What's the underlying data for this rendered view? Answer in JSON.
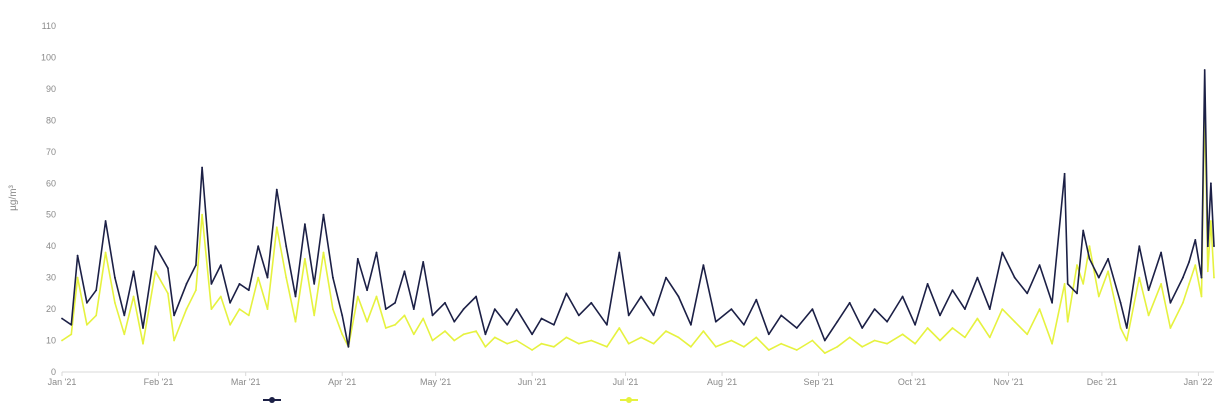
{
  "chart_data": {
    "type": "line",
    "title": "",
    "xlabel": "",
    "ylabel": "µg/m³",
    "ylim": [
      0,
      110
    ],
    "yticks": [
      "0",
      "10",
      "20",
      "30",
      "40",
      "50",
      "60",
      "70",
      "80",
      "90",
      "100",
      "110"
    ],
    "xticks": [
      "Jan '21",
      "Feb '21",
      "Mar '21",
      "Apr '21",
      "May '21",
      "Jun '21",
      "Jul '21",
      "Aug '21",
      "Sep '21",
      "Oct '21",
      "Nov '21",
      "Dec '21",
      "Jan '22"
    ],
    "grid": false,
    "legend_position": "bottom",
    "colors": {
      "pm10": "#1c2046",
      "pm25": "#e6f23f",
      "axis": "#d9d9d9",
      "text": "#8a8a8a"
    },
    "series": [
      {
        "key": "pm10",
        "name": "",
        "points": [
          [
            "2021-01-01",
            17
          ],
          [
            "2021-01-04",
            15
          ],
          [
            "2021-01-06",
            37
          ],
          [
            "2021-01-09",
            22
          ],
          [
            "2021-01-12",
            26
          ],
          [
            "2021-01-15",
            48
          ],
          [
            "2021-01-18",
            30
          ],
          [
            "2021-01-21",
            18
          ],
          [
            "2021-01-24",
            32
          ],
          [
            "2021-01-27",
            14
          ],
          [
            "2021-01-31",
            40
          ],
          [
            "2021-02-04",
            33
          ],
          [
            "2021-02-06",
            18
          ],
          [
            "2021-02-10",
            28
          ],
          [
            "2021-02-13",
            34
          ],
          [
            "2021-02-15",
            65
          ],
          [
            "2021-02-18",
            28
          ],
          [
            "2021-02-21",
            34
          ],
          [
            "2021-02-24",
            22
          ],
          [
            "2021-02-27",
            28
          ],
          [
            "2021-03-02",
            26
          ],
          [
            "2021-03-05",
            40
          ],
          [
            "2021-03-08",
            30
          ],
          [
            "2021-03-11",
            58
          ],
          [
            "2021-03-14",
            40
          ],
          [
            "2021-03-17",
            24
          ],
          [
            "2021-03-20",
            47
          ],
          [
            "2021-03-23",
            28
          ],
          [
            "2021-03-26",
            50
          ],
          [
            "2021-03-29",
            30
          ],
          [
            "2021-04-01",
            18
          ],
          [
            "2021-04-03",
            8
          ],
          [
            "2021-04-06",
            36
          ],
          [
            "2021-04-09",
            26
          ],
          [
            "2021-04-12",
            38
          ],
          [
            "2021-04-15",
            20
          ],
          [
            "2021-04-18",
            22
          ],
          [
            "2021-04-21",
            32
          ],
          [
            "2021-04-24",
            20
          ],
          [
            "2021-04-27",
            35
          ],
          [
            "2021-04-30",
            18
          ],
          [
            "2021-05-04",
            22
          ],
          [
            "2021-05-07",
            16
          ],
          [
            "2021-05-10",
            20
          ],
          [
            "2021-05-14",
            24
          ],
          [
            "2021-05-17",
            12
          ],
          [
            "2021-05-20",
            20
          ],
          [
            "2021-05-24",
            15
          ],
          [
            "2021-05-27",
            20
          ],
          [
            "2021-06-01",
            12
          ],
          [
            "2021-06-04",
            17
          ],
          [
            "2021-06-08",
            15
          ],
          [
            "2021-06-12",
            25
          ],
          [
            "2021-06-16",
            18
          ],
          [
            "2021-06-20",
            22
          ],
          [
            "2021-06-25",
            15
          ],
          [
            "2021-06-29",
            38
          ],
          [
            "2021-07-02",
            18
          ],
          [
            "2021-07-06",
            24
          ],
          [
            "2021-07-10",
            18
          ],
          [
            "2021-07-14",
            30
          ],
          [
            "2021-07-18",
            24
          ],
          [
            "2021-07-22",
            15
          ],
          [
            "2021-07-26",
            34
          ],
          [
            "2021-07-30",
            16
          ],
          [
            "2021-08-04",
            20
          ],
          [
            "2021-08-08",
            15
          ],
          [
            "2021-08-12",
            23
          ],
          [
            "2021-08-16",
            12
          ],
          [
            "2021-08-20",
            18
          ],
          [
            "2021-08-25",
            14
          ],
          [
            "2021-08-30",
            20
          ],
          [
            "2021-09-03",
            10
          ],
          [
            "2021-09-07",
            16
          ],
          [
            "2021-09-11",
            22
          ],
          [
            "2021-09-15",
            14
          ],
          [
            "2021-09-19",
            20
          ],
          [
            "2021-09-23",
            16
          ],
          [
            "2021-09-28",
            24
          ],
          [
            "2021-10-02",
            15
          ],
          [
            "2021-10-06",
            28
          ],
          [
            "2021-10-10",
            18
          ],
          [
            "2021-10-14",
            26
          ],
          [
            "2021-10-18",
            20
          ],
          [
            "2021-10-22",
            30
          ],
          [
            "2021-10-26",
            20
          ],
          [
            "2021-10-30",
            38
          ],
          [
            "2021-11-03",
            30
          ],
          [
            "2021-11-07",
            25
          ],
          [
            "2021-11-11",
            34
          ],
          [
            "2021-11-15",
            22
          ],
          [
            "2021-11-19",
            63
          ],
          [
            "2021-11-20",
            28
          ],
          [
            "2021-11-23",
            25
          ],
          [
            "2021-11-25",
            45
          ],
          [
            "2021-11-27",
            36
          ],
          [
            "2021-11-30",
            30
          ],
          [
            "2021-12-03",
            36
          ],
          [
            "2021-12-07",
            22
          ],
          [
            "2021-12-09",
            14
          ],
          [
            "2021-12-13",
            40
          ],
          [
            "2021-12-16",
            26
          ],
          [
            "2021-12-20",
            38
          ],
          [
            "2021-12-23",
            22
          ],
          [
            "2021-12-27",
            30
          ],
          [
            "2021-12-29",
            35
          ],
          [
            "2021-12-31",
            42
          ],
          [
            "2022-01-02",
            30
          ],
          [
            "2022-01-03",
            96
          ],
          [
            "2022-01-04",
            40
          ],
          [
            "2022-01-05",
            60
          ],
          [
            "2022-01-06",
            40
          ]
        ]
      },
      {
        "key": "pm25",
        "name": "",
        "points": [
          [
            "2021-01-01",
            10
          ],
          [
            "2021-01-04",
            12
          ],
          [
            "2021-01-06",
            30
          ],
          [
            "2021-01-09",
            15
          ],
          [
            "2021-01-12",
            18
          ],
          [
            "2021-01-15",
            38
          ],
          [
            "2021-01-18",
            22
          ],
          [
            "2021-01-21",
            12
          ],
          [
            "2021-01-24",
            24
          ],
          [
            "2021-01-27",
            9
          ],
          [
            "2021-01-31",
            32
          ],
          [
            "2021-02-04",
            25
          ],
          [
            "2021-02-06",
            10
          ],
          [
            "2021-02-10",
            20
          ],
          [
            "2021-02-13",
            26
          ],
          [
            "2021-02-15",
            50
          ],
          [
            "2021-02-18",
            20
          ],
          [
            "2021-02-21",
            24
          ],
          [
            "2021-02-24",
            15
          ],
          [
            "2021-02-27",
            20
          ],
          [
            "2021-03-02",
            18
          ],
          [
            "2021-03-05",
            30
          ],
          [
            "2021-03-08",
            20
          ],
          [
            "2021-03-11",
            46
          ],
          [
            "2021-03-14",
            30
          ],
          [
            "2021-03-17",
            16
          ],
          [
            "2021-03-20",
            36
          ],
          [
            "2021-03-23",
            18
          ],
          [
            "2021-03-26",
            38
          ],
          [
            "2021-03-29",
            20
          ],
          [
            "2021-04-01",
            12
          ],
          [
            "2021-04-03",
            8
          ],
          [
            "2021-04-06",
            24
          ],
          [
            "2021-04-09",
            16
          ],
          [
            "2021-04-12",
            24
          ],
          [
            "2021-04-15",
            14
          ],
          [
            "2021-04-18",
            15
          ],
          [
            "2021-04-21",
            18
          ],
          [
            "2021-04-24",
            12
          ],
          [
            "2021-04-27",
            17
          ],
          [
            "2021-04-30",
            10
          ],
          [
            "2021-05-04",
            13
          ],
          [
            "2021-05-07",
            10
          ],
          [
            "2021-05-10",
            12
          ],
          [
            "2021-05-14",
            13
          ],
          [
            "2021-05-17",
            8
          ],
          [
            "2021-05-20",
            11
          ],
          [
            "2021-05-24",
            9
          ],
          [
            "2021-05-27",
            10
          ],
          [
            "2021-06-01",
            7
          ],
          [
            "2021-06-04",
            9
          ],
          [
            "2021-06-08",
            8
          ],
          [
            "2021-06-12",
            11
          ],
          [
            "2021-06-16",
            9
          ],
          [
            "2021-06-20",
            10
          ],
          [
            "2021-06-25",
            8
          ],
          [
            "2021-06-29",
            14
          ],
          [
            "2021-07-02",
            9
          ],
          [
            "2021-07-06",
            11
          ],
          [
            "2021-07-10",
            9
          ],
          [
            "2021-07-14",
            13
          ],
          [
            "2021-07-18",
            11
          ],
          [
            "2021-07-22",
            8
          ],
          [
            "2021-07-26",
            13
          ],
          [
            "2021-07-30",
            8
          ],
          [
            "2021-08-04",
            10
          ],
          [
            "2021-08-08",
            8
          ],
          [
            "2021-08-12",
            11
          ],
          [
            "2021-08-16",
            7
          ],
          [
            "2021-08-20",
            9
          ],
          [
            "2021-08-25",
            7
          ],
          [
            "2021-08-30",
            10
          ],
          [
            "2021-09-03",
            6
          ],
          [
            "2021-09-07",
            8
          ],
          [
            "2021-09-11",
            11
          ],
          [
            "2021-09-15",
            8
          ],
          [
            "2021-09-19",
            10
          ],
          [
            "2021-09-23",
            9
          ],
          [
            "2021-09-28",
            12
          ],
          [
            "2021-10-02",
            9
          ],
          [
            "2021-10-06",
            14
          ],
          [
            "2021-10-10",
            10
          ],
          [
            "2021-10-14",
            14
          ],
          [
            "2021-10-18",
            11
          ],
          [
            "2021-10-22",
            17
          ],
          [
            "2021-10-26",
            11
          ],
          [
            "2021-10-30",
            20
          ],
          [
            "2021-11-03",
            16
          ],
          [
            "2021-11-07",
            12
          ],
          [
            "2021-11-11",
            20
          ],
          [
            "2021-11-15",
            9
          ],
          [
            "2021-11-19",
            28
          ],
          [
            "2021-11-20",
            16
          ],
          [
            "2021-11-23",
            34
          ],
          [
            "2021-11-25",
            28
          ],
          [
            "2021-11-27",
            40
          ],
          [
            "2021-11-30",
            24
          ],
          [
            "2021-12-03",
            32
          ],
          [
            "2021-12-07",
            14
          ],
          [
            "2021-12-09",
            10
          ],
          [
            "2021-12-13",
            30
          ],
          [
            "2021-12-16",
            18
          ],
          [
            "2021-12-20",
            28
          ],
          [
            "2021-12-23",
            14
          ],
          [
            "2021-12-27",
            22
          ],
          [
            "2021-12-29",
            28
          ],
          [
            "2021-12-31",
            34
          ],
          [
            "2022-01-02",
            24
          ],
          [
            "2022-01-03",
            85
          ],
          [
            "2022-01-04",
            32
          ],
          [
            "2022-01-05",
            48
          ],
          [
            "2022-01-06",
            30
          ]
        ]
      }
    ]
  }
}
